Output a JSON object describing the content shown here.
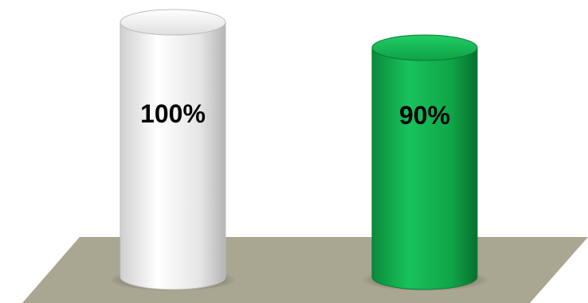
{
  "chart_data": {
    "type": "bar",
    "style": "3d-cylinder",
    "categories": [
      "",
      ""
    ],
    "values": [
      100,
      90
    ],
    "data_labels": [
      "100%",
      "90%"
    ],
    "ylim": [
      0,
      100
    ],
    "grid": false,
    "colors": {
      "bars": [
        "#f2f2f2",
        "#12a84c"
      ],
      "bar_shades": [
        "#bdbdbd",
        "#0a7a33"
      ],
      "floor": "#a9a692"
    }
  }
}
